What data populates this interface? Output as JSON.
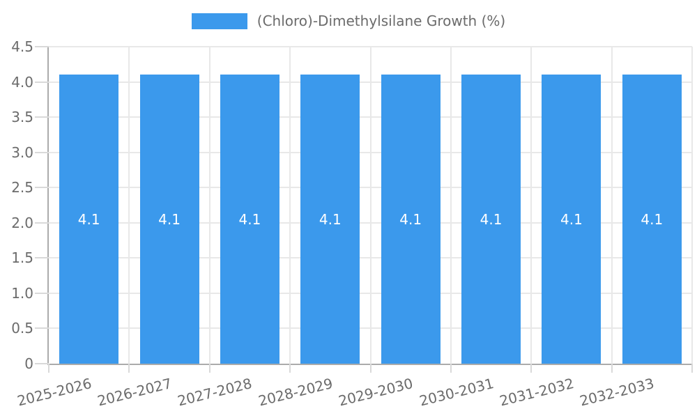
{
  "chart_data": {
    "type": "bar",
    "title": "(Chloro)-Dimethylsilane Growth (%)",
    "categories": [
      "2025-2026",
      "2026-2027",
      "2027-2028",
      "2028-2029",
      "2029-2030",
      "2030-2031",
      "2031-2032",
      "2032-2033"
    ],
    "values": [
      4.1,
      4.1,
      4.1,
      4.1,
      4.1,
      4.1,
      4.1,
      4.1
    ],
    "value_labels": [
      "4.1",
      "4.1",
      "4.1",
      "4.1",
      "4.1",
      "4.1",
      "4.1",
      "4.1"
    ],
    "xlabel": "",
    "ylabel": "",
    "ylim": [
      0,
      4.5
    ],
    "yticks": [
      {
        "value": 0,
        "label": "0"
      },
      {
        "value": 0.5,
        "label": "0.5"
      },
      {
        "value": 1.0,
        "label": "1.0"
      },
      {
        "value": 1.5,
        "label": "1.5"
      },
      {
        "value": 2.0,
        "label": "2.0"
      },
      {
        "value": 2.5,
        "label": "2.5"
      },
      {
        "value": 3.0,
        "label": "3.0"
      },
      {
        "value": 3.5,
        "label": "3.5"
      },
      {
        "value": 4.0,
        "label": "4.0"
      },
      {
        "value": 4.5,
        "label": "4.5"
      }
    ],
    "grid": true,
    "legend_position": "top",
    "colors": {
      "bar": "#3b99ec",
      "grid": "#e8e8e8",
      "tick": "#d9d9d9",
      "axis": "#ababab",
      "label_text": "#6b6b6b",
      "bar_label_text": "#ffffff"
    }
  }
}
